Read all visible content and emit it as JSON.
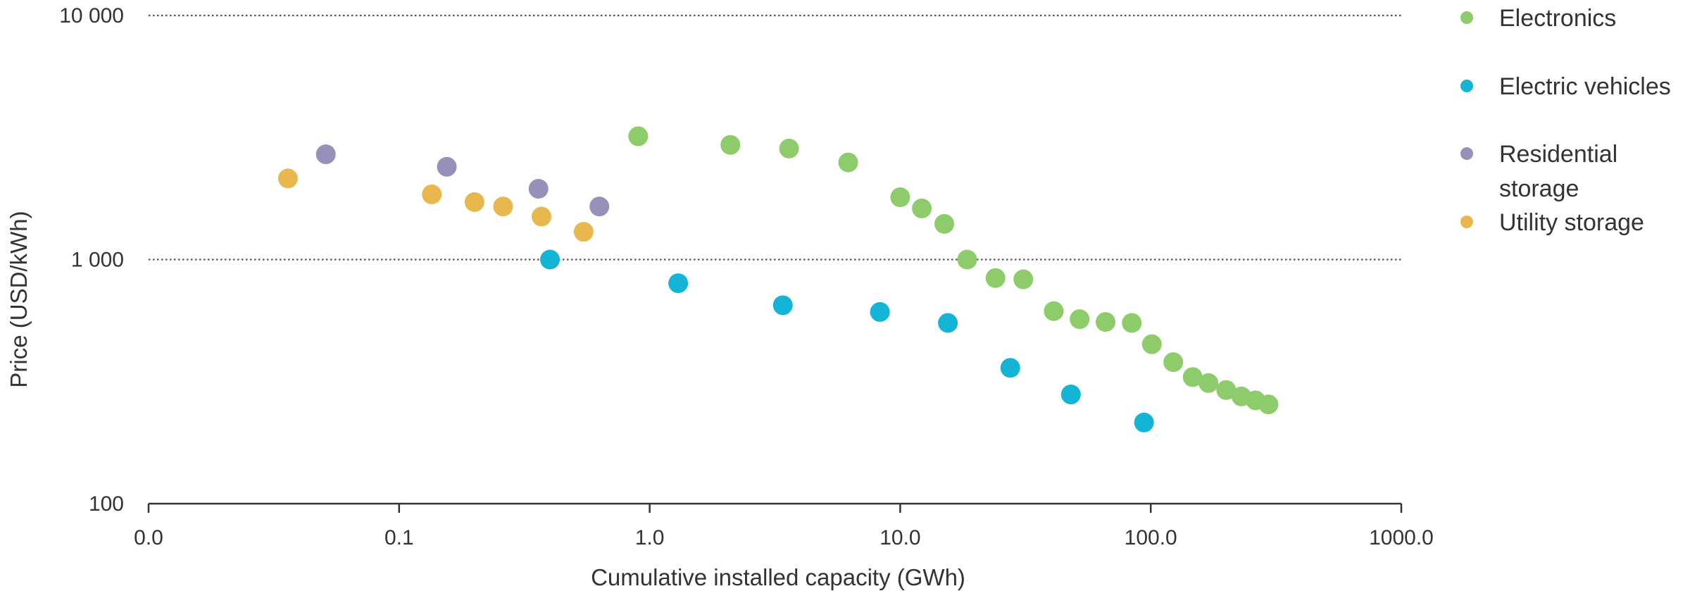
{
  "chart_data": {
    "type": "scatter",
    "title": "",
    "xlabel": "Cumulative installed capacity (GWh)",
    "ylabel": "Price (USD/kWh)",
    "x_scale": "log",
    "y_scale": "log",
    "xlim": [
      0.01,
      1000
    ],
    "ylim": [
      100,
      10000
    ],
    "x_ticks": [
      {
        "value": 0.01,
        "label": "0.0"
      },
      {
        "value": 0.1,
        "label": "0.1"
      },
      {
        "value": 1,
        "label": "1.0"
      },
      {
        "value": 10,
        "label": "10.0"
      },
      {
        "value": 100,
        "label": "100.0"
      },
      {
        "value": 1000,
        "label": "1000.0"
      }
    ],
    "y_ticks": [
      {
        "value": 100,
        "label": "100"
      },
      {
        "value": 1000,
        "label": "1 000"
      },
      {
        "value": 10000,
        "label": "10 000"
      }
    ],
    "gridlines": "horizontal dotted at 1 000 and 10 000",
    "legend_position": "right",
    "series": [
      {
        "name": "Electronics",
        "color": "#8ecb6a",
        "points": [
          {
            "x": 0.9,
            "y": 3200
          },
          {
            "x": 2.1,
            "y": 2950
          },
          {
            "x": 3.6,
            "y": 2850
          },
          {
            "x": 6.2,
            "y": 2500
          },
          {
            "x": 10.0,
            "y": 1800
          },
          {
            "x": 12.2,
            "y": 1620
          },
          {
            "x": 15.0,
            "y": 1400
          },
          {
            "x": 18.5,
            "y": 1000
          },
          {
            "x": 24.0,
            "y": 840
          },
          {
            "x": 31.0,
            "y": 830
          },
          {
            "x": 41.0,
            "y": 615
          },
          {
            "x": 52.0,
            "y": 570
          },
          {
            "x": 66.0,
            "y": 555
          },
          {
            "x": 84.0,
            "y": 550
          },
          {
            "x": 101.0,
            "y": 450
          },
          {
            "x": 123.0,
            "y": 380
          },
          {
            "x": 147.0,
            "y": 330
          },
          {
            "x": 170.0,
            "y": 312
          },
          {
            "x": 200.0,
            "y": 292
          },
          {
            "x": 230.0,
            "y": 275
          },
          {
            "x": 262.0,
            "y": 265
          },
          {
            "x": 295.0,
            "y": 255
          }
        ]
      },
      {
        "name": "Electric vehicles",
        "color": "#14b4d6",
        "points": [
          {
            "x": 0.4,
            "y": 1000
          },
          {
            "x": 1.3,
            "y": 800
          },
          {
            "x": 3.4,
            "y": 650
          },
          {
            "x": 8.3,
            "y": 610
          },
          {
            "x": 15.5,
            "y": 550
          },
          {
            "x": 27.5,
            "y": 360
          },
          {
            "x": 48.0,
            "y": 280
          },
          {
            "x": 94.0,
            "y": 215
          }
        ]
      },
      {
        "name": "Residential storage",
        "legend_lines": [
          "Residential",
          "storage"
        ],
        "color": "#9890b9",
        "points": [
          {
            "x": 0.051,
            "y": 2700
          },
          {
            "x": 0.155,
            "y": 2400
          },
          {
            "x": 0.36,
            "y": 1950
          },
          {
            "x": 0.63,
            "y": 1650
          }
        ]
      },
      {
        "name": "Utility storage",
        "color": "#e8b84e",
        "points": [
          {
            "x": 0.036,
            "y": 2150
          },
          {
            "x": 0.135,
            "y": 1850
          },
          {
            "x": 0.2,
            "y": 1720
          },
          {
            "x": 0.26,
            "y": 1650
          },
          {
            "x": 0.37,
            "y": 1500
          },
          {
            "x": 0.545,
            "y": 1300
          }
        ]
      }
    ]
  }
}
